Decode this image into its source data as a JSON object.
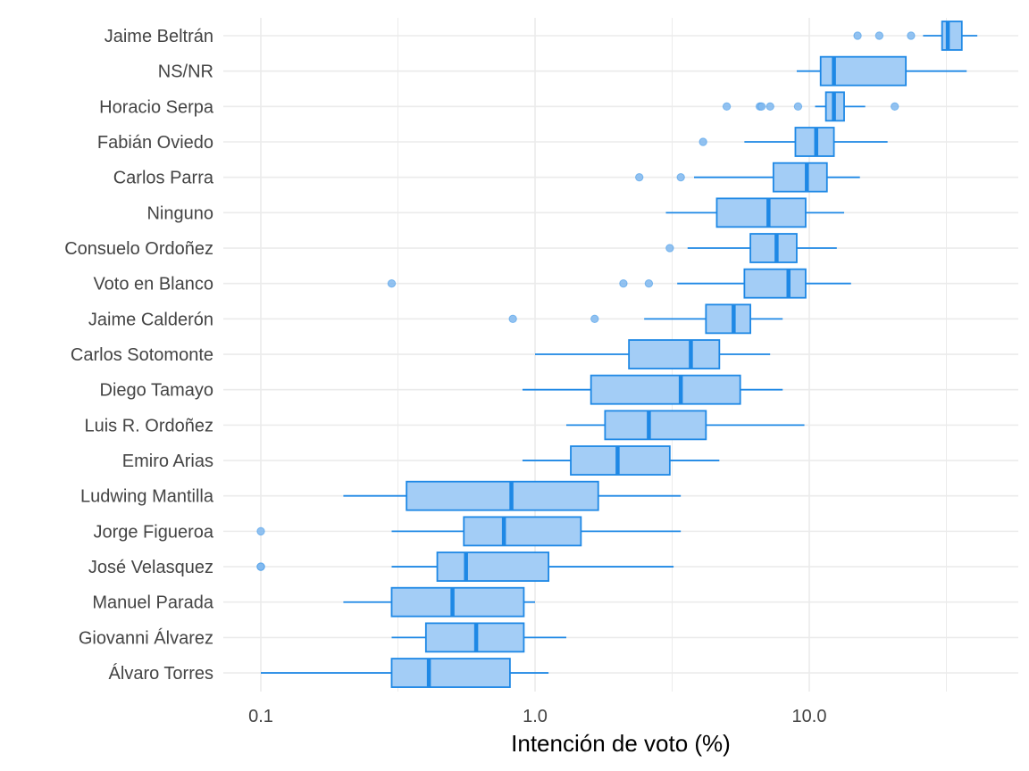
{
  "chart_data": {
    "type": "boxplot",
    "xlabel": "Intención de voto (%)",
    "ylabel": "",
    "x_scale": "log10",
    "xlim": [
      0.08,
      50
    ],
    "x_ticks": [
      {
        "value": 0.1,
        "label": "0.1"
      },
      {
        "value": 1,
        "label": "1.0"
      },
      {
        "value": 10,
        "label": "10.0"
      }
    ],
    "grid": true,
    "colors": {
      "fill": "#a3cdf6",
      "stroke": "#1e88e5",
      "outlier": "#7fb7ef",
      "grid": "#ebebeb",
      "text": "#444444"
    },
    "categories": [
      {
        "name": "Jaime Beltrán",
        "whisker_low": 26,
        "q1": 30.5,
        "median": 32,
        "q3": 36,
        "whisker_high": 41,
        "outliers": [
          15,
          18,
          23.5
        ]
      },
      {
        "name": "NS/NR",
        "whisker_low": 9,
        "q1": 11,
        "median": 12.3,
        "q3": 22.5,
        "whisker_high": 37.5,
        "outliers": []
      },
      {
        "name": "Horacio Serpa",
        "whisker_low": 10.5,
        "q1": 11.5,
        "median": 12.3,
        "q3": 13.4,
        "whisker_high": 16,
        "outliers": [
          5,
          6.6,
          6.7,
          7.2,
          9.1,
          20.5
        ]
      },
      {
        "name": "Fabián Oviedo",
        "whisker_low": 5.8,
        "q1": 8.9,
        "median": 10.6,
        "q3": 12.3,
        "whisker_high": 19.3,
        "outliers": [
          4.1
        ]
      },
      {
        "name": "Carlos Parra",
        "whisker_low": 3.8,
        "q1": 7.4,
        "median": 9.8,
        "q3": 11.6,
        "whisker_high": 15.3,
        "outliers": [
          2.4,
          3.4
        ]
      },
      {
        "name": "Ninguno",
        "whisker_low": 3,
        "q1": 4.6,
        "median": 7.1,
        "q3": 9.7,
        "whisker_high": 13.4,
        "outliers": []
      },
      {
        "name": "Consuelo Ordoñez",
        "whisker_low": 3.6,
        "q1": 6.1,
        "median": 7.6,
        "q3": 9,
        "whisker_high": 12.6,
        "outliers": [
          3.1
        ]
      },
      {
        "name": "Voto en Blanco",
        "whisker_low": 3.3,
        "q1": 5.8,
        "median": 8.4,
        "q3": 9.7,
        "whisker_high": 14.2,
        "outliers": [
          0.3,
          2.1,
          2.6
        ]
      },
      {
        "name": "Jaime Calderón",
        "whisker_low": 2.5,
        "q1": 4.2,
        "median": 5.3,
        "q3": 6.1,
        "whisker_high": 8,
        "outliers": [
          0.83,
          1.65
        ]
      },
      {
        "name": "Carlos Sotomonte",
        "whisker_low": 1,
        "q1": 2.2,
        "median": 3.7,
        "q3": 4.7,
        "whisker_high": 7.2,
        "outliers": []
      },
      {
        "name": "Diego Tamayo",
        "whisker_low": 0.9,
        "q1": 1.6,
        "median": 3.4,
        "q3": 5.6,
        "whisker_high": 8,
        "outliers": []
      },
      {
        "name": "Luis R. Ordoñez",
        "whisker_low": 1.3,
        "q1": 1.8,
        "median": 2.6,
        "q3": 4.2,
        "whisker_high": 9.6,
        "outliers": []
      },
      {
        "name": "Emiro Arias",
        "whisker_low": 0.9,
        "q1": 1.35,
        "median": 2,
        "q3": 3.1,
        "whisker_high": 4.7,
        "outliers": []
      },
      {
        "name": "Ludwing Mantilla",
        "whisker_low": 0.2,
        "q1": 0.34,
        "median": 0.82,
        "q3": 1.7,
        "whisker_high": 3.4,
        "outliers": []
      },
      {
        "name": "Jorge Figueroa",
        "whisker_low": 0.3,
        "q1": 0.55,
        "median": 0.77,
        "q3": 1.47,
        "whisker_high": 3.4,
        "outliers": [
          0.1
        ]
      },
      {
        "name": "José Velasquez",
        "whisker_low": 0.3,
        "q1": 0.44,
        "median": 0.56,
        "q3": 1.12,
        "whisker_high": 3.2,
        "outliers": [
          0.1,
          0.1
        ]
      },
      {
        "name": "Manuel Parada",
        "whisker_low": 0.2,
        "q1": 0.3,
        "median": 0.5,
        "q3": 0.91,
        "whisker_high": 1,
        "outliers": []
      },
      {
        "name": "Giovanni Álvarez",
        "whisker_low": 0.3,
        "q1": 0.4,
        "median": 0.61,
        "q3": 0.91,
        "whisker_high": 1.3,
        "outliers": []
      },
      {
        "name": "Álvaro Torres",
        "whisker_low": 0.1,
        "q1": 0.3,
        "median": 0.41,
        "q3": 0.81,
        "whisker_high": 1.12,
        "outliers": []
      }
    ]
  }
}
